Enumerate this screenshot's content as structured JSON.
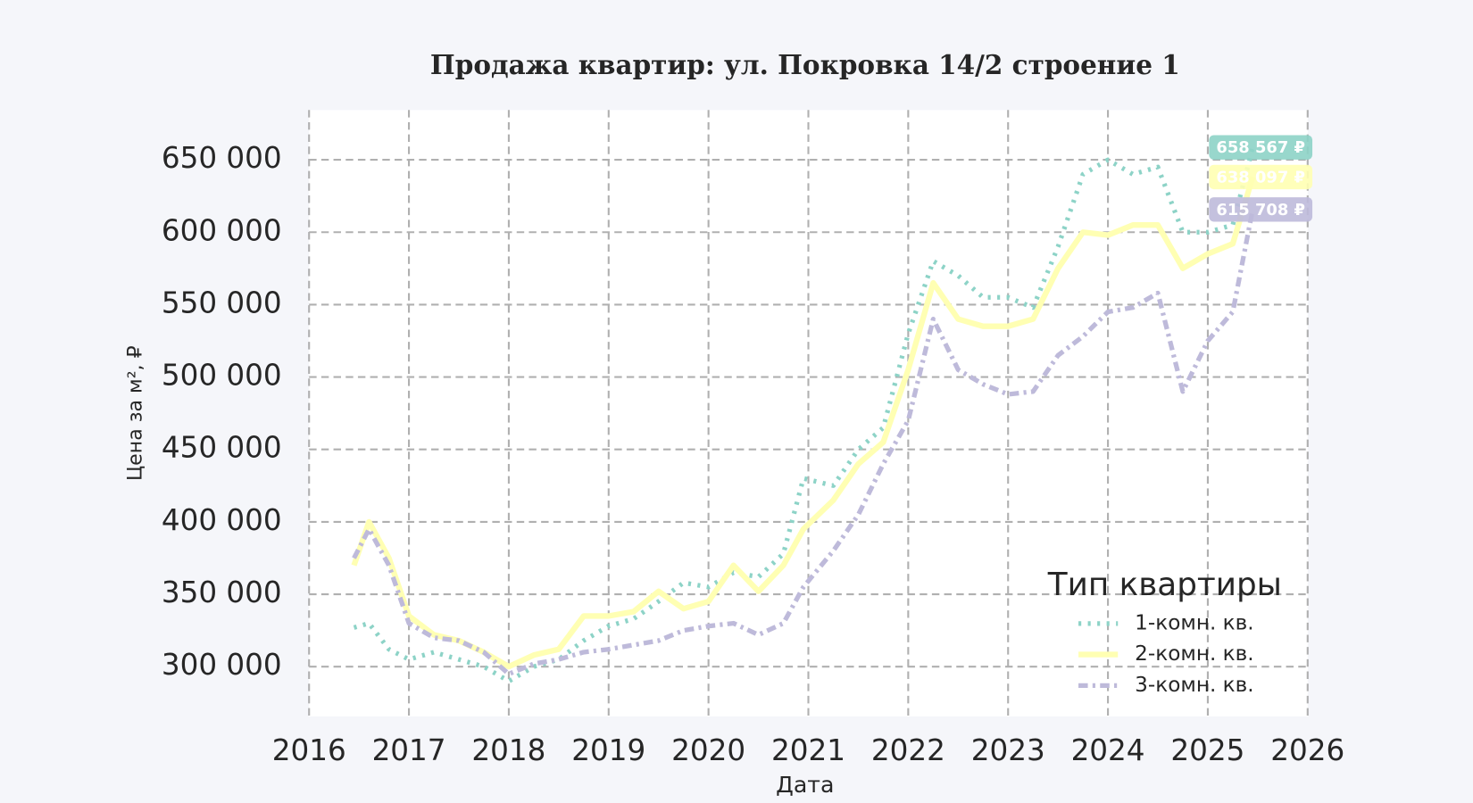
{
  "chart_data": {
    "type": "line",
    "title": "Продажа квартир: ул. Покровка 14/2 строение 1",
    "x_label": "Дата",
    "y_label": "Цена за м², ₽",
    "x": [
      2016.45,
      2016.6,
      2016.8,
      2017.0,
      2017.25,
      2017.5,
      2017.75,
      2018.0,
      2018.25,
      2018.5,
      2018.75,
      2019.0,
      2019.25,
      2019.5,
      2019.75,
      2020.0,
      2020.25,
      2020.5,
      2020.75,
      2020.95,
      2021.25,
      2021.5,
      2021.75,
      2022.0,
      2022.25,
      2022.5,
      2022.75,
      2023.0,
      2023.25,
      2023.5,
      2023.75,
      2024.0,
      2024.25,
      2024.5,
      2024.75,
      2025.0,
      2025.25,
      2025.45
    ],
    "series": [
      {
        "name": "1-комн. кв.",
        "color": "#8dd3c7",
        "linestyle": "dotted",
        "values": [
          327000,
          330000,
          312000,
          305000,
          310000,
          305000,
          300000,
          290000,
          300000,
          305000,
          318000,
          328000,
          333000,
          345000,
          358000,
          355000,
          365000,
          362000,
          378000,
          430000,
          425000,
          450000,
          465000,
          530000,
          580000,
          570000,
          555000,
          555000,
          548000,
          590000,
          640000,
          650000,
          640000,
          645000,
          600000,
          600000,
          605000,
          658567
        ]
      },
      {
        "name": "2-комн. кв.",
        "color": "#ffffb3",
        "linestyle": "solid",
        "values": [
          370000,
          400000,
          375000,
          335000,
          322000,
          318000,
          310000,
          300000,
          308000,
          312000,
          335000,
          335000,
          338000,
          352000,
          340000,
          345000,
          370000,
          352000,
          370000,
          395000,
          415000,
          440000,
          455000,
          505000,
          565000,
          540000,
          535000,
          535000,
          540000,
          575000,
          600000,
          598000,
          605000,
          605000,
          575000,
          585000,
          592000,
          638097
        ]
      },
      {
        "name": "3-комн. кв.",
        "color": "#bebada",
        "linestyle": "dashdot",
        "values": [
          375000,
          395000,
          370000,
          330000,
          320000,
          318000,
          310000,
          295000,
          302000,
          305000,
          310000,
          312000,
          315000,
          318000,
          325000,
          328000,
          330000,
          322000,
          330000,
          355000,
          380000,
          405000,
          440000,
          470000,
          540000,
          505000,
          495000,
          488000,
          490000,
          515000,
          528000,
          545000,
          548000,
          558000,
          490000,
          525000,
          545000,
          615708
        ]
      }
    ],
    "annotations": [
      {
        "value": 658567,
        "label": "658 567 ₽",
        "color": "#8dd3c7"
      },
      {
        "value": 638097,
        "label": "638 097 ₽",
        "color": "#ffffb3"
      },
      {
        "value": 615708,
        "label": "615 708 ₽",
        "color": "#bebada"
      }
    ],
    "xlim": [
      2016,
      2026
    ],
    "xticks": [
      2016,
      2017,
      2018,
      2019,
      2020,
      2021,
      2022,
      2023,
      2024,
      2025,
      2026
    ],
    "ylim": [
      265600,
      684400
    ],
    "yticks": [
      {
        "value": 300000,
        "label": "300 000"
      },
      {
        "value": 350000,
        "label": "350 000"
      },
      {
        "value": 400000,
        "label": "400 000"
      },
      {
        "value": 450000,
        "label": "450 000"
      },
      {
        "value": 500000,
        "label": "500 000"
      },
      {
        "value": 550000,
        "label": "550 000"
      },
      {
        "value": 600000,
        "label": "600 000"
      },
      {
        "value": 650000,
        "label": "650 000"
      }
    ],
    "grid": true,
    "legend_title": "Тип квартиры",
    "legend": "lower right"
  }
}
